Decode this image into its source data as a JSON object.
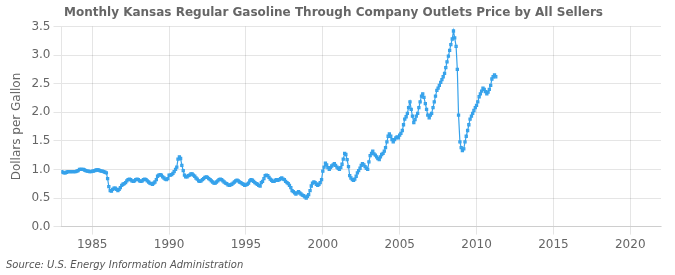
{
  "chart_data": {
    "type": "line",
    "title": "Monthly Kansas Regular Gasoline Through Company Outlets Price by All Sellers",
    "ylabel": "Dollars per Gallon",
    "annotation": "Source: U.S. Energy Information Administration",
    "xlim": [
      1983,
      2022
    ],
    "ylim": [
      0.0,
      3.5
    ],
    "xticks": [
      1985,
      1990,
      1995,
      2000,
      2005,
      2010,
      2015,
      2020
    ],
    "yticks": [
      {
        "value": 0.0,
        "label": "0.0"
      },
      0.5,
      {
        "value": 1.0,
        "label": "1.0"
      },
      1.5,
      {
        "value": 2.0,
        "label": "2.0"
      },
      2.5,
      {
        "value": 3.0,
        "label": "3.0"
      },
      3.5
    ],
    "grid": true,
    "marker": "square",
    "x": [
      1983,
      1983.08,
      1983.17,
      1983.25,
      1983.33,
      1983.42,
      1983.5,
      1983.58,
      1983.67,
      1983.75,
      1983.83,
      1983.92,
      1984,
      1984.08,
      1984.17,
      1984.25,
      1984.33,
      1984.42,
      1984.5,
      1984.58,
      1984.67,
      1984.75,
      1984.83,
      1984.92,
      1985,
      1985.08,
      1985.17,
      1985.25,
      1985.33,
      1985.42,
      1985.5,
      1985.58,
      1985.67,
      1985.75,
      1985.83,
      1985.92,
      1986,
      1986.08,
      1986.17,
      1986.25,
      1986.33,
      1986.42,
      1986.5,
      1986.58,
      1986.67,
      1986.75,
      1986.83,
      1986.92,
      1987,
      1987.08,
      1987.17,
      1987.25,
      1987.33,
      1987.42,
      1987.5,
      1987.58,
      1987.67,
      1987.75,
      1987.83,
      1987.92,
      1988,
      1988.08,
      1988.17,
      1988.25,
      1988.33,
      1988.42,
      1988.5,
      1988.58,
      1988.67,
      1988.75,
      1988.83,
      1988.92,
      1989,
      1989.08,
      1989.17,
      1989.25,
      1989.33,
      1989.42,
      1989.5,
      1989.58,
      1989.67,
      1989.75,
      1989.83,
      1989.92,
      1990,
      1990.08,
      1990.17,
      1990.25,
      1990.33,
      1990.42,
      1990.5,
      1990.58,
      1990.67,
      1990.75,
      1990.83,
      1990.92,
      1991,
      1991.08,
      1991.17,
      1991.25,
      1991.33,
      1991.42,
      1991.5,
      1991.58,
      1991.67,
      1991.75,
      1991.83,
      1991.92,
      1992,
      1992.08,
      1992.17,
      1992.25,
      1992.33,
      1992.42,
      1992.5,
      1992.58,
      1992.67,
      1992.75,
      1992.83,
      1992.92,
      1993,
      1993.08,
      1993.17,
      1993.25,
      1993.33,
      1993.42,
      1993.5,
      1993.58,
      1993.67,
      1993.75,
      1993.83,
      1993.92,
      1994,
      1994.08,
      1994.17,
      1994.25,
      1994.33,
      1994.42,
      1994.5,
      1994.58,
      1994.67,
      1994.75,
      1994.83,
      1994.92,
      1995,
      1995.08,
      1995.17,
      1995.25,
      1995.33,
      1995.42,
      1995.5,
      1995.58,
      1995.67,
      1995.75,
      1995.83,
      1995.92,
      1996,
      1996.08,
      1996.17,
      1996.25,
      1996.33,
      1996.42,
      1996.5,
      1996.58,
      1996.67,
      1996.75,
      1996.83,
      1996.92,
      1997,
      1997.08,
      1997.17,
      1997.25,
      1997.33,
      1997.42,
      1997.5,
      1997.58,
      1997.67,
      1997.75,
      1997.83,
      1997.92,
      1998,
      1998.08,
      1998.17,
      1998.25,
      1998.33,
      1998.42,
      1998.5,
      1998.58,
      1998.67,
      1998.75,
      1998.83,
      1998.92,
      1999,
      1999.08,
      1999.17,
      1999.25,
      1999.33,
      1999.42,
      1999.5,
      1999.58,
      1999.67,
      1999.75,
      1999.83,
      1999.92,
      2000,
      2000.08,
      2000.17,
      2000.25,
      2000.33,
      2000.42,
      2000.5,
      2000.58,
      2000.67,
      2000.75,
      2000.83,
      2000.92,
      2001,
      2001.08,
      2001.17,
      2001.25,
      2001.33,
      2001.42,
      2001.5,
      2001.58,
      2001.67,
      2001.75,
      2001.83,
      2001.92,
      2002,
      2002.08,
      2002.17,
      2002.25,
      2002.33,
      2002.42,
      2002.5,
      2002.58,
      2002.67,
      2002.75,
      2002.83,
      2002.92,
      2003,
      2003.08,
      2003.17,
      2003.25,
      2003.33,
      2003.42,
      2003.5,
      2003.58,
      2003.67,
      2003.75,
      2003.83,
      2003.92,
      2004,
      2004.08,
      2004.17,
      2004.25,
      2004.33,
      2004.42,
      2004.5,
      2004.58,
      2004.67,
      2004.75,
      2004.83,
      2004.92,
      2005,
      2005.08,
      2005.17,
      2005.25,
      2005.33,
      2005.42,
      2005.5,
      2005.58,
      2005.67,
      2005.75,
      2005.83,
      2005.92,
      2006,
      2006.08,
      2006.17,
      2006.25,
      2006.33,
      2006.42,
      2006.5,
      2006.58,
      2006.67,
      2006.75,
      2006.83,
      2006.92,
      2007,
      2007.08,
      2007.17,
      2007.25,
      2007.33,
      2007.42,
      2007.5,
      2007.58,
      2007.67,
      2007.75,
      2007.83,
      2007.92,
      2008,
      2008.08,
      2008.17,
      2008.25,
      2008.33,
      2008.42,
      2008.5,
      2008.58,
      2008.67,
      2008.75,
      2008.83,
      2008.92,
      2009,
      2009.08,
      2009.17,
      2009.25,
      2009.33,
      2009.42,
      2009.5,
      2009.58,
      2009.67,
      2009.75,
      2009.83,
      2009.92,
      2010,
      2010.08,
      2010.17,
      2010.25,
      2010.33,
      2010.42,
      2010.5,
      2010.58,
      2010.67,
      2010.75,
      2010.83,
      2010.92,
      2011,
      2011.08,
      2011.17,
      2011.25
    ],
    "values": [
      0.96,
      0.95,
      0.94,
      0.94,
      0.95,
      0.96,
      0.96,
      0.96,
      0.96,
      0.96,
      0.96,
      0.96,
      0.97,
      0.98,
      1.0,
      1.0,
      1.0,
      1.0,
      0.99,
      0.98,
      0.97,
      0.97,
      0.96,
      0.96,
      0.97,
      0.97,
      0.98,
      0.99,
      0.99,
      0.99,
      0.98,
      0.97,
      0.97,
      0.96,
      0.95,
      0.94,
      0.84,
      0.7,
      0.63,
      0.62,
      0.65,
      0.67,
      0.67,
      0.65,
      0.63,
      0.65,
      0.68,
      0.72,
      0.74,
      0.75,
      0.77,
      0.8,
      0.82,
      0.83,
      0.82,
      0.8,
      0.79,
      0.8,
      0.82,
      0.83,
      0.82,
      0.8,
      0.79,
      0.8,
      0.82,
      0.83,
      0.82,
      0.8,
      0.78,
      0.76,
      0.75,
      0.74,
      0.76,
      0.78,
      0.82,
      0.88,
      0.9,
      0.91,
      0.9,
      0.87,
      0.85,
      0.83,
      0.82,
      0.84,
      0.9,
      0.9,
      0.91,
      0.93,
      0.96,
      1.0,
      1.04,
      1.18,
      1.22,
      1.19,
      1.07,
      0.98,
      0.9,
      0.87,
      0.87,
      0.89,
      0.9,
      0.92,
      0.92,
      0.9,
      0.88,
      0.85,
      0.83,
      0.8,
      0.79,
      0.8,
      0.82,
      0.84,
      0.86,
      0.87,
      0.86,
      0.84,
      0.82,
      0.8,
      0.78,
      0.76,
      0.76,
      0.78,
      0.8,
      0.82,
      0.83,
      0.82,
      0.8,
      0.78,
      0.76,
      0.75,
      0.73,
      0.72,
      0.73,
      0.74,
      0.76,
      0.78,
      0.8,
      0.81,
      0.8,
      0.78,
      0.77,
      0.75,
      0.74,
      0.72,
      0.73,
      0.74,
      0.76,
      0.8,
      0.82,
      0.81,
      0.79,
      0.77,
      0.75,
      0.74,
      0.72,
      0.71,
      0.77,
      0.79,
      0.84,
      0.89,
      0.9,
      0.89,
      0.86,
      0.83,
      0.81,
      0.79,
      0.79,
      0.81,
      0.82,
      0.81,
      0.82,
      0.84,
      0.85,
      0.83,
      0.82,
      0.79,
      0.77,
      0.75,
      0.72,
      0.68,
      0.63,
      0.61,
      0.59,
      0.57,
      0.59,
      0.61,
      0.59,
      0.57,
      0.55,
      0.54,
      0.52,
      0.5,
      0.53,
      0.56,
      0.63,
      0.71,
      0.76,
      0.78,
      0.77,
      0.74,
      0.72,
      0.74,
      0.77,
      0.82,
      0.97,
      1.04,
      1.11,
      1.08,
      1.03,
      1.0,
      1.03,
      1.06,
      1.08,
      1.1,
      1.07,
      1.04,
      1.02,
      1.0,
      1.03,
      1.09,
      1.18,
      1.28,
      1.26,
      1.17,
      1.05,
      0.89,
      0.85,
      0.82,
      0.81,
      0.83,
      0.88,
      0.94,
      0.98,
      1.02,
      1.07,
      1.1,
      1.08,
      1.05,
      1.02,
      1.0,
      1.13,
      1.24,
      1.28,
      1.32,
      1.27,
      1.25,
      1.22,
      1.19,
      1.17,
      1.22,
      1.26,
      1.28,
      1.32,
      1.38,
      1.48,
      1.58,
      1.62,
      1.58,
      1.52,
      1.48,
      1.52,
      1.55,
      1.57,
      1.55,
      1.6,
      1.63,
      1.68,
      1.78,
      1.88,
      1.92,
      1.98,
      2.08,
      2.18,
      2.05,
      1.93,
      1.82,
      1.87,
      1.93,
      1.98,
      2.08,
      2.18,
      2.28,
      2.32,
      2.26,
      2.15,
      2.05,
      1.95,
      1.9,
      1.95,
      1.98,
      2.08,
      2.18,
      2.28,
      2.38,
      2.42,
      2.47,
      2.52,
      2.57,
      2.62,
      2.68,
      2.78,
      2.88,
      2.98,
      3.08,
      3.18,
      3.28,
      3.42,
      3.3,
      3.15,
      2.75,
      1.95,
      1.48,
      1.38,
      1.33,
      1.36,
      1.48,
      1.58,
      1.68,
      1.78,
      1.88,
      1.93,
      1.98,
      2.03,
      2.08,
      2.12,
      2.18,
      2.27,
      2.32,
      2.37,
      2.42,
      2.4,
      2.36,
      2.32,
      2.35,
      2.4,
      2.47,
      2.58,
      2.62,
      2.65,
      2.62
    ]
  }
}
